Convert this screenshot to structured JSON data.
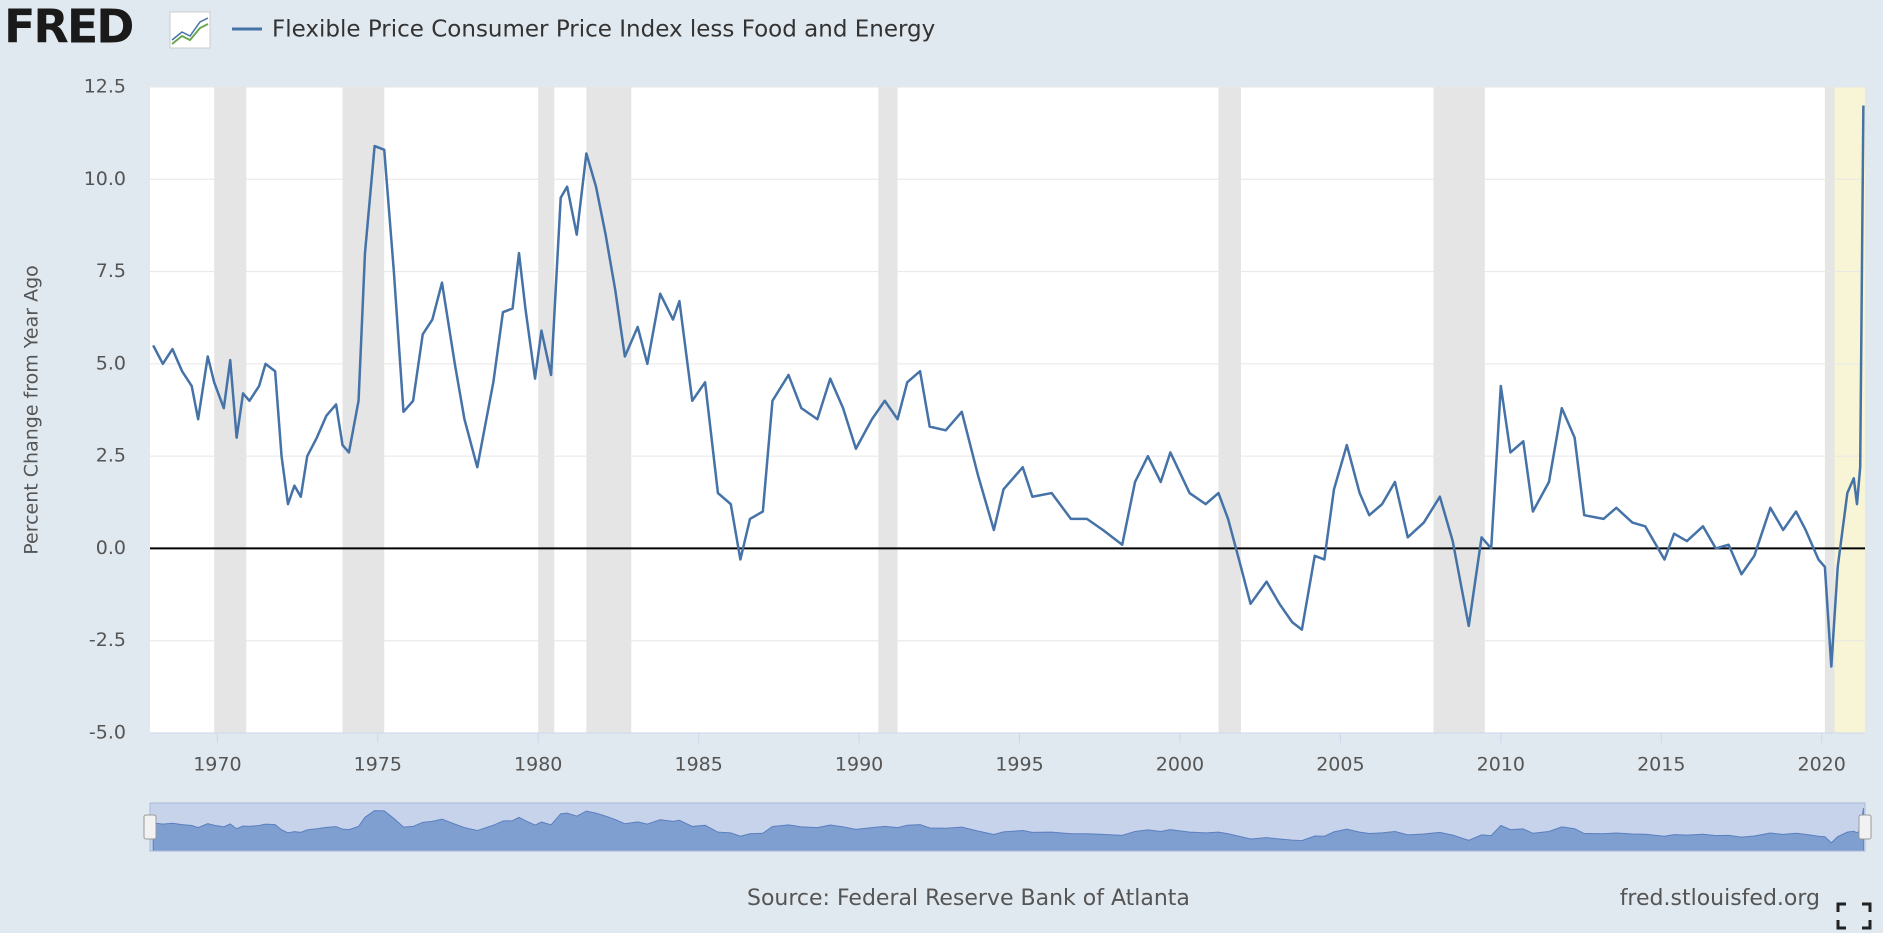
{
  "chart_data": {
    "type": "line",
    "brand": "FRED",
    "ylabel": "Percent Change from Year Ago",
    "source": "Source: Federal Reserve Bank of Atlanta",
    "link": "fred.stlouisfed.org",
    "series": [
      {
        "name": "Flexible Price Consumer Price Index less Food and Energy",
        "color": "#4572a7",
        "x": [
          1968.0,
          1968.3,
          1968.6,
          1968.9,
          1969.2,
          1969.4,
          1969.7,
          1969.9,
          1970.2,
          1970.4,
          1970.6,
          1970.8,
          1971.0,
          1971.3,
          1971.5,
          1971.8,
          1972.0,
          1972.2,
          1972.4,
          1972.6,
          1972.8,
          1973.1,
          1973.4,
          1973.7,
          1973.9,
          1974.1,
          1974.4,
          1974.6,
          1974.9,
          1975.2,
          1975.5,
          1975.8,
          1976.1,
          1976.4,
          1976.7,
          1977.0,
          1977.4,
          1977.7,
          1978.1,
          1978.6,
          1978.9,
          1979.2,
          1979.4,
          1979.6,
          1979.9,
          1980.1,
          1980.4,
          1980.7,
          1980.9,
          1981.2,
          1981.5,
          1981.8,
          1982.1,
          1982.4,
          1982.7,
          1983.1,
          1983.4,
          1983.8,
          1984.2,
          1984.4,
          1984.8,
          1985.2,
          1985.6,
          1986.0,
          1986.3,
          1986.6,
          1987.0,
          1987.3,
          1987.8,
          1988.2,
          1988.7,
          1989.1,
          1989.5,
          1989.9,
          1990.4,
          1990.8,
          1991.2,
          1991.5,
          1991.9,
          1992.2,
          1992.7,
          1993.2,
          1993.7,
          1994.2,
          1994.5,
          1995.1,
          1995.4,
          1996.0,
          1996.6,
          1997.1,
          1997.6,
          1998.2,
          1998.6,
          1999.0,
          1999.4,
          1999.7,
          2000.3,
          2000.8,
          2001.2,
          2001.5,
          2001.9,
          2002.2,
          2002.7,
          2003.1,
          2003.5,
          2003.8,
          2004.2,
          2004.5,
          2004.8,
          2005.2,
          2005.6,
          2005.9,
          2006.3,
          2006.7,
          2007.1,
          2007.6,
          2008.1,
          2008.5,
          2009.0,
          2009.4,
          2009.7,
          2010.0,
          2010.3,
          2010.7,
          2011.0,
          2011.5,
          2011.9,
          2012.3,
          2012.6,
          2013.2,
          2013.6,
          2014.1,
          2014.5,
          2015.1,
          2015.4,
          2015.8,
          2016.3,
          2016.7,
          2017.1,
          2017.5,
          2017.9,
          2018.4,
          2018.8,
          2019.2,
          2019.5,
          2019.9,
          2020.1,
          2020.3,
          2020.5,
          2020.8,
          2021.0,
          2021.1,
          2021.2,
          2021.3
        ],
        "values": [
          5.5,
          5.0,
          5.4,
          4.8,
          4.4,
          3.5,
          5.2,
          4.5,
          3.8,
          5.1,
          3.0,
          4.2,
          4.0,
          4.4,
          5.0,
          4.8,
          2.5,
          1.2,
          1.7,
          1.4,
          2.5,
          3.0,
          3.6,
          3.9,
          2.8,
          2.6,
          4.0,
          8.0,
          10.9,
          10.8,
          7.5,
          3.7,
          4.0,
          5.8,
          6.2,
          7.2,
          5.0,
          3.5,
          2.2,
          4.5,
          6.4,
          6.5,
          8.0,
          6.5,
          4.6,
          5.9,
          4.7,
          9.5,
          9.8,
          8.5,
          10.7,
          9.8,
          8.5,
          7.0,
          5.2,
          6.0,
          5.0,
          6.9,
          6.2,
          6.7,
          4.0,
          4.5,
          1.5,
          1.2,
          -0.3,
          0.8,
          1.0,
          4.0,
          4.7,
          3.8,
          3.5,
          4.6,
          3.8,
          2.7,
          3.5,
          4.0,
          3.5,
          4.5,
          4.8,
          3.3,
          3.2,
          3.7,
          2.0,
          0.5,
          1.6,
          2.2,
          1.4,
          1.5,
          0.8,
          0.8,
          0.5,
          0.1,
          1.8,
          2.5,
          1.8,
          2.6,
          1.5,
          1.2,
          1.5,
          0.8,
          -0.5,
          -1.5,
          -0.9,
          -1.5,
          -2.0,
          -2.2,
          -0.2,
          -0.3,
          1.6,
          2.8,
          1.5,
          0.9,
          1.2,
          1.8,
          0.3,
          0.7,
          1.4,
          0.2,
          -2.1,
          0.3,
          0.0,
          4.4,
          2.6,
          2.9,
          1.0,
          1.8,
          3.8,
          3.0,
          0.9,
          0.8,
          1.1,
          0.7,
          0.6,
          -0.3,
          0.4,
          0.2,
          0.6,
          0.0,
          0.1,
          -0.7,
          -0.2,
          1.1,
          0.5,
          1.0,
          0.5,
          -0.3,
          -0.5,
          -3.2,
          -0.5,
          1.5,
          1.9,
          1.2,
          2.2,
          12.0
        ]
      }
    ],
    "recessions": [
      [
        1969.9,
        1970.9
      ],
      [
        1973.9,
        1975.2
      ],
      [
        1980.0,
        1980.5
      ],
      [
        1981.5,
        1982.9
      ],
      [
        1990.6,
        1991.2
      ],
      [
        2001.2,
        2001.9
      ],
      [
        2007.9,
        2009.5
      ],
      [
        2020.1,
        2020.4
      ]
    ],
    "highlight": [
      2020.1,
      2021.35
    ],
    "xlim": [
      1967.9,
      2021.35
    ],
    "xticks": [
      1970,
      1975,
      1980,
      1985,
      1990,
      1995,
      2000,
      2005,
      2010,
      2015,
      2020
    ],
    "ylim": [
      -5,
      12.5
    ],
    "yticks": [
      {
        "value": -5,
        "label": "-5.0"
      },
      -2.5,
      {
        "value": 0,
        "label": "0.0"
      },
      2.5,
      {
        "value": 5,
        "label": "5.0"
      },
      7.5,
      {
        "value": 10,
        "label": "10.0"
      },
      12.5
    ],
    "grid": true
  }
}
